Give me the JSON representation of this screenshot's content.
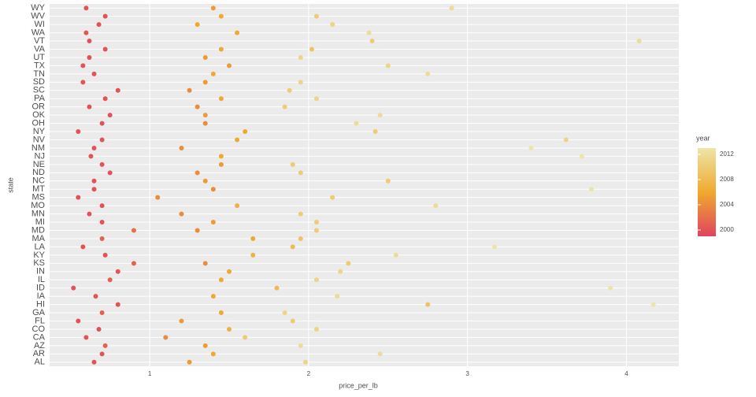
{
  "chart_data": {
    "type": "scatter",
    "x_label": "price_per_lb",
    "y_label": "state",
    "legend_title": "year",
    "categories": [
      "AL",
      "AR",
      "AZ",
      "CA",
      "CO",
      "FL",
      "GA",
      "HI",
      "IA",
      "ID",
      "IL",
      "IN",
      "KS",
      "KY",
      "LA",
      "MA",
      "MD",
      "MI",
      "MN",
      "MO",
      "MS",
      "MT",
      "NC",
      "ND",
      "NE",
      "NJ",
      "NM",
      "NV",
      "NY",
      "OH",
      "OK",
      "OR",
      "PA",
      "SC",
      "SD",
      "TN",
      "TX",
      "UT",
      "VA",
      "VT",
      "WA",
      "WI",
      "WV",
      "WY"
    ],
    "y": [
      "AL",
      "AL",
      "AL",
      "AR",
      "AR",
      "AR",
      "AZ",
      "AZ",
      "AZ",
      "CA",
      "CA",
      "CA",
      "CO",
      "CO",
      "CO",
      "FL",
      "FL",
      "FL",
      "GA",
      "GA",
      "GA",
      "HI",
      "HI",
      "HI",
      "IA",
      "IA",
      "IA",
      "ID",
      "ID",
      "ID",
      "IL",
      "IL",
      "IL",
      "IN",
      "IN",
      "IN",
      "KS",
      "KS",
      "KS",
      "KY",
      "KY",
      "KY",
      "LA",
      "LA",
      "LA",
      "MA",
      "MA",
      "MA",
      "MD",
      "MD",
      "MD",
      "MI",
      "MI",
      "MI",
      "MN",
      "MN",
      "MN",
      "MO",
      "MO",
      "MO",
      "MS",
      "MS",
      "MS",
      "MT",
      "MT",
      "MT",
      "NC",
      "NC",
      "NC",
      "ND",
      "ND",
      "ND",
      "NE",
      "NE",
      "NE",
      "NJ",
      "NJ",
      "NJ",
      "NM",
      "NM",
      "NM",
      "NV",
      "NV",
      "NV",
      "NY",
      "NY",
      "NY",
      "OH",
      "OH",
      "OH",
      "OK",
      "OK",
      "OK",
      "OR",
      "OR",
      "OR",
      "PA",
      "PA",
      "PA",
      "SC",
      "SC",
      "SC",
      "SD",
      "SD",
      "SD",
      "TN",
      "TN",
      "TN",
      "TX",
      "TX",
      "TX",
      "UT",
      "UT",
      "UT",
      "VA",
      "VA",
      "VA",
      "VT",
      "VT",
      "VT",
      "WA",
      "WA",
      "WA",
      "WI",
      "WI",
      "WI",
      "WV",
      "WV",
      "WV",
      "WY",
      "WY",
      "WY"
    ],
    "x": [
      0.65,
      1.25,
      1.98,
      0.7,
      1.4,
      2.45,
      0.72,
      1.35,
      1.95,
      0.6,
      1.1,
      1.6,
      0.68,
      1.5,
      2.05,
      0.55,
      1.2,
      1.9,
      0.7,
      1.45,
      1.85,
      0.8,
      2.75,
      4.17,
      0.66,
      1.4,
      2.18,
      0.52,
      1.8,
      3.9,
      0.75,
      1.45,
      2.05,
      0.8,
      1.5,
      2.2,
      0.9,
      1.35,
      2.25,
      0.72,
      1.65,
      2.55,
      0.58,
      1.9,
      3.17,
      0.7,
      1.65,
      1.95,
      0.9,
      1.3,
      2.05,
      0.7,
      1.4,
      2.05,
      0.62,
      1.2,
      1.95,
      0.7,
      1.55,
      2.8,
      0.55,
      1.05,
      2.15,
      0.65,
      1.4,
      3.78,
      0.65,
      1.35,
      2.5,
      0.75,
      1.3,
      1.95,
      0.7,
      1.45,
      1.9,
      0.63,
      1.45,
      3.72,
      0.65,
      1.2,
      3.4,
      0.7,
      1.55,
      3.62,
      0.55,
      1.6,
      2.42,
      0.7,
      1.35,
      2.3,
      0.75,
      1.35,
      2.45,
      0.62,
      1.3,
      1.85,
      0.72,
      1.45,
      2.05,
      0.8,
      1.25,
      1.88,
      0.58,
      1.35,
      1.95,
      0.65,
      1.4,
      2.75,
      0.58,
      1.5,
      2.5,
      0.62,
      1.35,
      1.95,
      0.72,
      1.45,
      2.02,
      0.62,
      2.4,
      4.08,
      0.6,
      1.55,
      2.38,
      0.68,
      1.3,
      2.15,
      0.72,
      1.45,
      2.05,
      0.6,
      1.4,
      2.9
    ],
    "year": [
      2000,
      2005,
      2011,
      2000,
      2006,
      2012,
      2001,
      2005,
      2012,
      2000,
      2004,
      2010,
      2000,
      2007,
      2011,
      2000,
      2005,
      2010,
      2001,
      2006,
      2011,
      2000,
      2009,
      2013,
      2000,
      2006,
      2012,
      2000,
      2008,
      2013,
      2001,
      2006,
      2011,
      2000,
      2006,
      2011,
      2001,
      2004,
      2010,
      2000,
      2007,
      2012,
      2000,
      2008,
      2013,
      2001,
      2006,
      2009,
      2002,
      2004,
      2010,
      2000,
      2005,
      2010,
      2000,
      2004,
      2010,
      2000,
      2007,
      2012,
      2000,
      2004,
      2010,
      2000,
      2004,
      2013,
      2000,
      2005,
      2010,
      2000,
      2004,
      2010,
      2000,
      2005,
      2010,
      2000,
      2006,
      2013,
      2000,
      2004,
      2013,
      2000,
      2006,
      2011,
      2000,
      2006,
      2010,
      2000,
      2004,
      2012,
      2000,
      2005,
      2012,
      2000,
      2004,
      2010,
      2000,
      2006,
      2011,
      2000,
      2004,
      2010,
      2000,
      2005,
      2011,
      2000,
      2006,
      2012,
      2000,
      2005,
      2011,
      2000,
      2005,
      2011,
      2000,
      2006,
      2009,
      2000,
      2010,
      2012,
      2000,
      2006,
      2012,
      2000,
      2006,
      2011,
      2000,
      2006,
      2010,
      2000,
      2005,
      2012
    ],
    "xlim": [
      0.37,
      4.33
    ],
    "xticks": [
      1,
      2,
      3,
      4
    ],
    "colorlim": [
      1999,
      2013
    ],
    "colorticks": [
      2000,
      2004,
      2008,
      2012
    ],
    "colors": [
      "#e0435f",
      "#f0a92e",
      "#ede5a8"
    ],
    "grid": true
  }
}
